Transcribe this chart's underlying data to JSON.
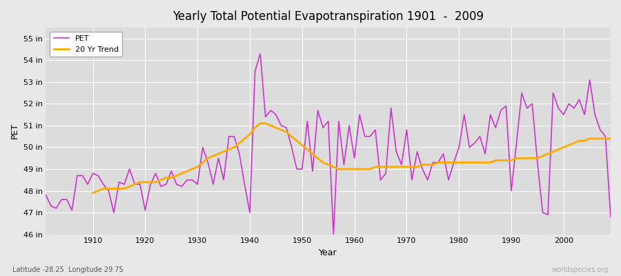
{
  "title": "Yearly Total Potential Evapotranspiration 1901  -  2009",
  "xlabel": "Year",
  "ylabel": "PET",
  "subtitle_left": "Latitude -28.25  Longitude 29.75",
  "subtitle_right": "worldspecies.org",
  "ylim": [
    46,
    55.5
  ],
  "yticks": [
    46,
    47,
    48,
    49,
    50,
    51,
    52,
    53,
    54,
    55
  ],
  "ytick_labels": [
    "46 in",
    "47 in",
    "48 in",
    "49 in",
    "50 in",
    "51 in",
    "52 in",
    "53 in",
    "54 in",
    "55 in"
  ],
  "xlim": [
    1901,
    2009
  ],
  "xticks": [
    1910,
    1920,
    1930,
    1940,
    1950,
    1960,
    1970,
    1980,
    1990,
    2000
  ],
  "pet_color": "#cc33cc",
  "trend_color": "#ffaa00",
  "background_color": "#e8e8e8",
  "plot_bg_color": "#dcdcdc",
  "grid_color": "#ffffff",
  "pet_linewidth": 1.2,
  "trend_linewidth": 2.0,
  "years": [
    1901,
    1902,
    1903,
    1904,
    1905,
    1906,
    1907,
    1908,
    1909,
    1910,
    1911,
    1912,
    1913,
    1914,
    1915,
    1916,
    1917,
    1918,
    1919,
    1920,
    1921,
    1922,
    1923,
    1924,
    1925,
    1926,
    1927,
    1928,
    1929,
    1930,
    1931,
    1932,
    1933,
    1934,
    1935,
    1936,
    1937,
    1938,
    1939,
    1940,
    1941,
    1942,
    1943,
    1944,
    1945,
    1946,
    1947,
    1948,
    1949,
    1950,
    1951,
    1952,
    1953,
    1954,
    1955,
    1956,
    1957,
    1958,
    1959,
    1960,
    1961,
    1962,
    1963,
    1964,
    1965,
    1966,
    1967,
    1968,
    1969,
    1970,
    1971,
    1972,
    1973,
    1974,
    1975,
    1976,
    1977,
    1978,
    1979,
    1980,
    1981,
    1982,
    1983,
    1984,
    1985,
    1986,
    1987,
    1988,
    1989,
    1990,
    1991,
    1992,
    1993,
    1994,
    1995,
    1996,
    1997,
    1998,
    1999,
    2000,
    2001,
    2002,
    2003,
    2004,
    2005,
    2006,
    2007,
    2008,
    2009
  ],
  "pet_values": [
    47.8,
    47.3,
    47.2,
    47.6,
    47.6,
    47.1,
    48.7,
    48.7,
    48.3,
    48.8,
    48.7,
    48.3,
    48.0,
    47.0,
    48.4,
    48.3,
    49.0,
    48.3,
    48.3,
    47.1,
    48.3,
    48.8,
    48.2,
    48.3,
    48.9,
    48.3,
    48.2,
    48.5,
    48.5,
    48.3,
    50.0,
    49.3,
    48.3,
    49.5,
    48.5,
    50.5,
    50.5,
    49.7,
    48.3,
    47.0,
    53.5,
    54.3,
    51.4,
    51.7,
    51.5,
    51.0,
    50.9,
    50.0,
    49.0,
    49.0,
    51.2,
    48.9,
    51.7,
    50.9,
    51.2,
    46.0,
    51.2,
    49.2,
    51.0,
    49.5,
    51.5,
    50.5,
    50.5,
    50.8,
    48.5,
    48.8,
    51.8,
    49.8,
    49.2,
    50.8,
    48.5,
    49.8,
    49.0,
    48.5,
    49.3,
    49.3,
    49.7,
    48.5,
    49.3,
    50.0,
    51.5,
    50.0,
    50.2,
    50.5,
    49.7,
    51.5,
    50.9,
    51.7,
    51.9,
    48.0,
    50.2,
    52.5,
    51.8,
    52.0,
    49.3,
    47.0,
    46.9,
    52.5,
    51.8,
    51.5,
    52.0,
    51.8,
    52.2,
    51.5,
    53.1,
    51.5,
    50.8,
    50.5,
    46.8
  ],
  "trend_years": [
    1910,
    1911,
    1912,
    1913,
    1914,
    1915,
    1916,
    1917,
    1918,
    1919,
    1920,
    1921,
    1922,
    1923,
    1924,
    1925,
    1926,
    1927,
    1928,
    1929,
    1930,
    1931,
    1932,
    1933,
    1934,
    1935,
    1936,
    1937,
    1938,
    1939,
    1940,
    1941,
    1942,
    1943,
    1944,
    1945,
    1946,
    1947,
    1948,
    1949,
    1950,
    1951,
    1952,
    1953,
    1954,
    1955,
    1956,
    1957,
    1958,
    1959,
    1960,
    1961,
    1962,
    1963,
    1964,
    1965,
    1966,
    1967,
    1968,
    1969,
    1970,
    1971,
    1972,
    1973,
    1974,
    1975,
    1976,
    1977,
    1978,
    1979,
    1980,
    1981,
    1982,
    1983,
    1984,
    1985,
    1986,
    1987,
    1988,
    1989,
    1990,
    1991,
    1992,
    1993,
    1994,
    1995,
    1996,
    1997,
    1998,
    1999,
    2000,
    2001,
    2002,
    2003,
    2004,
    2005,
    2006,
    2007,
    2008,
    2009
  ],
  "trend_values": [
    47.9,
    48.0,
    48.1,
    48.1,
    48.1,
    48.1,
    48.1,
    48.2,
    48.3,
    48.4,
    48.4,
    48.4,
    48.4,
    48.5,
    48.6,
    48.6,
    48.7,
    48.8,
    48.9,
    49.0,
    49.1,
    49.3,
    49.5,
    49.6,
    49.7,
    49.8,
    49.9,
    50.0,
    50.2,
    50.4,
    50.6,
    50.9,
    51.1,
    51.1,
    51.0,
    50.9,
    50.8,
    50.7,
    50.5,
    50.3,
    50.1,
    49.9,
    49.7,
    49.5,
    49.3,
    49.2,
    49.1,
    49.0,
    49.0,
    49.0,
    49.0,
    49.0,
    49.0,
    49.0,
    49.1,
    49.1,
    49.1,
    49.1,
    49.1,
    49.1,
    49.1,
    49.1,
    49.1,
    49.2,
    49.2,
    49.2,
    49.3,
    49.3,
    49.3,
    49.3,
    49.3,
    49.3,
    49.3,
    49.3,
    49.3,
    49.3,
    49.3,
    49.4,
    49.4,
    49.4,
    49.4,
    49.5,
    49.5,
    49.5,
    49.5,
    49.5,
    49.6,
    49.7,
    49.8,
    49.9,
    50.0,
    50.1,
    50.2,
    50.3,
    50.3,
    50.4,
    50.4,
    50.4,
    50.4,
    50.4
  ]
}
